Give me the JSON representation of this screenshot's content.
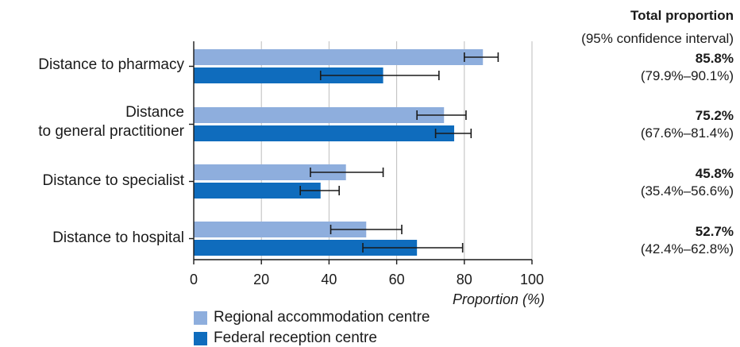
{
  "chart_data": {
    "type": "bar",
    "orientation": "horizontal",
    "categories": [
      "Distance to pharmacy",
      "Distance\nto general practitioner",
      "Distance to specialist",
      "Distance to hospital"
    ],
    "series": [
      {
        "name": "Regional accommodation centre",
        "color": "#8eaedd",
        "values": [
          85.5,
          74,
          45,
          51
        ],
        "ci_low": [
          80,
          66,
          34.5,
          40.5
        ],
        "ci_high": [
          90,
          80.5,
          56,
          61.5
        ]
      },
      {
        "name": "Federal reception centre",
        "color": "#0f6cbd",
        "values": [
          56,
          77,
          37.5,
          66
        ],
        "ci_low": [
          37.5,
          71.5,
          31.5,
          50
        ],
        "ci_high": [
          72.5,
          82,
          43,
          79.5
        ]
      }
    ],
    "xlabel": "Proportion (%)",
    "xlim": [
      0,
      100
    ],
    "xticks": [
      0,
      20,
      40,
      60,
      80,
      100
    ],
    "grid": "vertical",
    "legend_position": "bottom-left"
  },
  "side_panel": {
    "title": "Total proportion",
    "subtitle": "(95% confidence interval)",
    "entries": [
      {
        "value": "85.8%",
        "ci": "(79.9%–90.1%)"
      },
      {
        "value": "75.2%",
        "ci": "(67.6%–81.4%)"
      },
      {
        "value": "45.8%",
        "ci": "(35.4%–56.6%)"
      },
      {
        "value": "52.7%",
        "ci": "(42.4%–62.8%)"
      }
    ]
  },
  "legend": {
    "items": [
      {
        "label": "Regional accommodation centre",
        "color": "#8eaedd"
      },
      {
        "label": "Federal reception centre",
        "color": "#0f6cbd"
      }
    ]
  }
}
